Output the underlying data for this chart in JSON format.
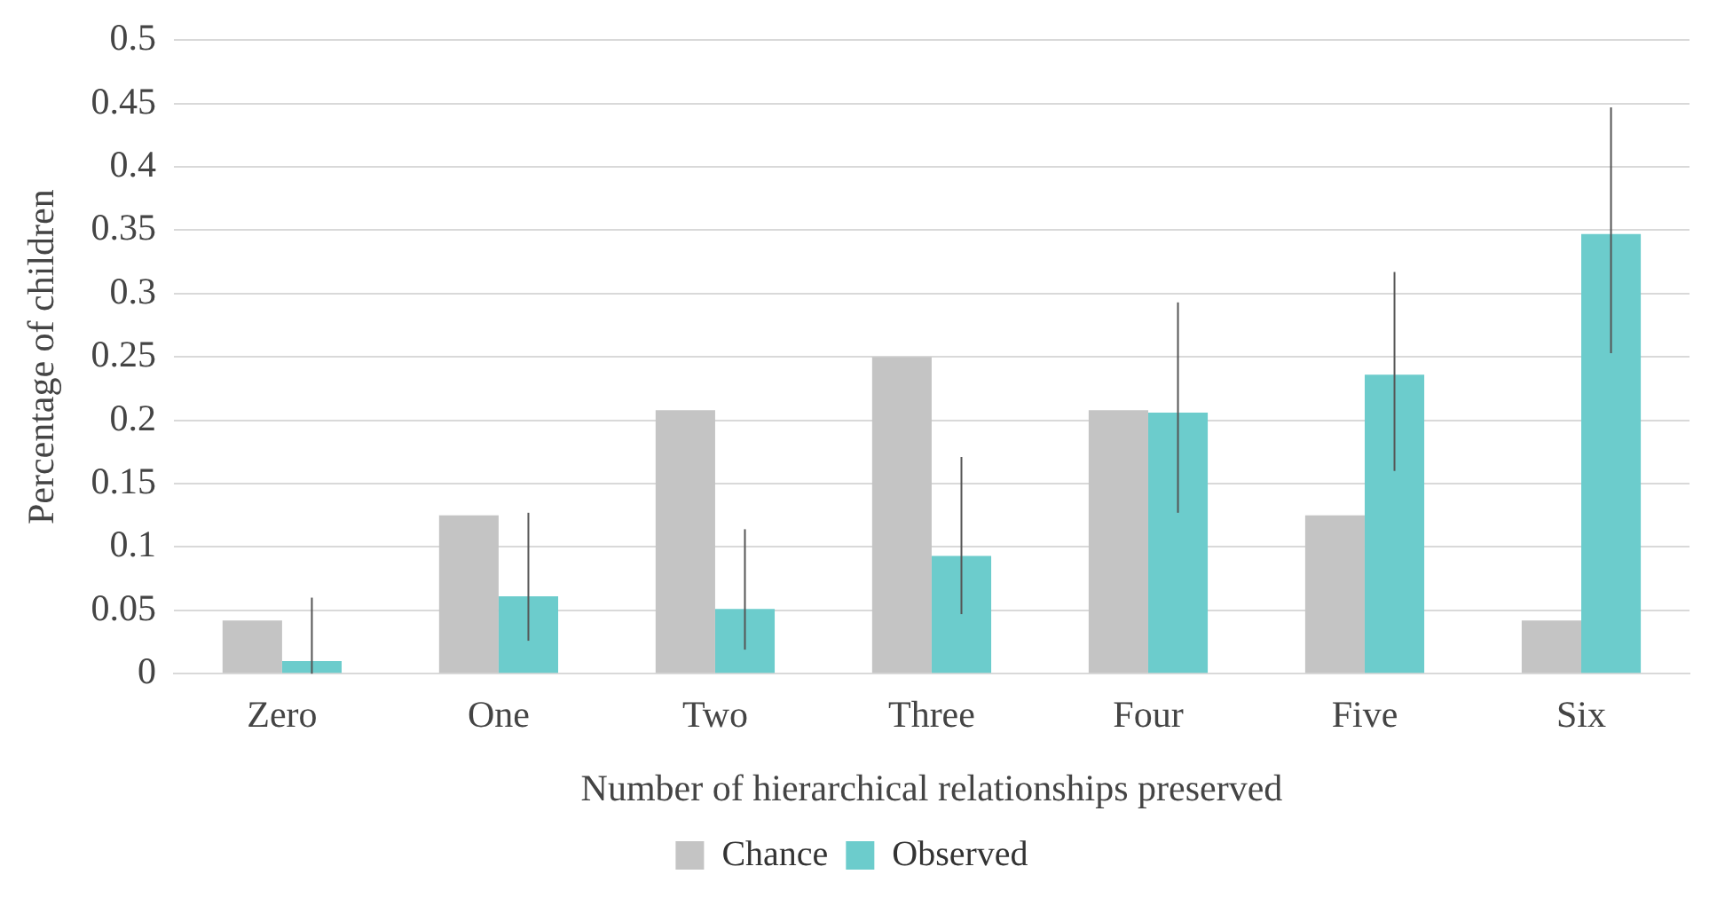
{
  "chart_data": {
    "type": "bar",
    "xlabel": "Number of hierarchical relationships preserved",
    "ylabel": "Percentage of children",
    "categories": [
      "Zero",
      "One",
      "Two",
      "Three",
      "Four",
      "Five",
      "Six"
    ],
    "series": [
      {
        "name": "Chance",
        "color": "#c4c4c4",
        "values": [
          0.042,
          0.125,
          0.208,
          0.25,
          0.208,
          0.125,
          0.042
        ]
      },
      {
        "name": "Observed",
        "color": "#6ccccc",
        "values": [
          0.01,
          0.061,
          0.051,
          0.093,
          0.206,
          0.236,
          0.347
        ],
        "errors": [
          [
            0.0,
            0.06
          ],
          [
            0.026,
            0.127
          ],
          [
            0.019,
            0.114
          ],
          [
            0.047,
            0.171
          ],
          [
            0.127,
            0.293
          ],
          [
            0.16,
            0.317
          ],
          [
            0.253,
            0.447
          ]
        ]
      }
    ],
    "ylim": [
      0,
      0.5
    ],
    "yticks": [
      0,
      0.05,
      0.1,
      0.15,
      0.2,
      0.25,
      0.3,
      0.35,
      0.4,
      0.45,
      0.5
    ],
    "grid": "y",
    "legend": "bottom"
  }
}
